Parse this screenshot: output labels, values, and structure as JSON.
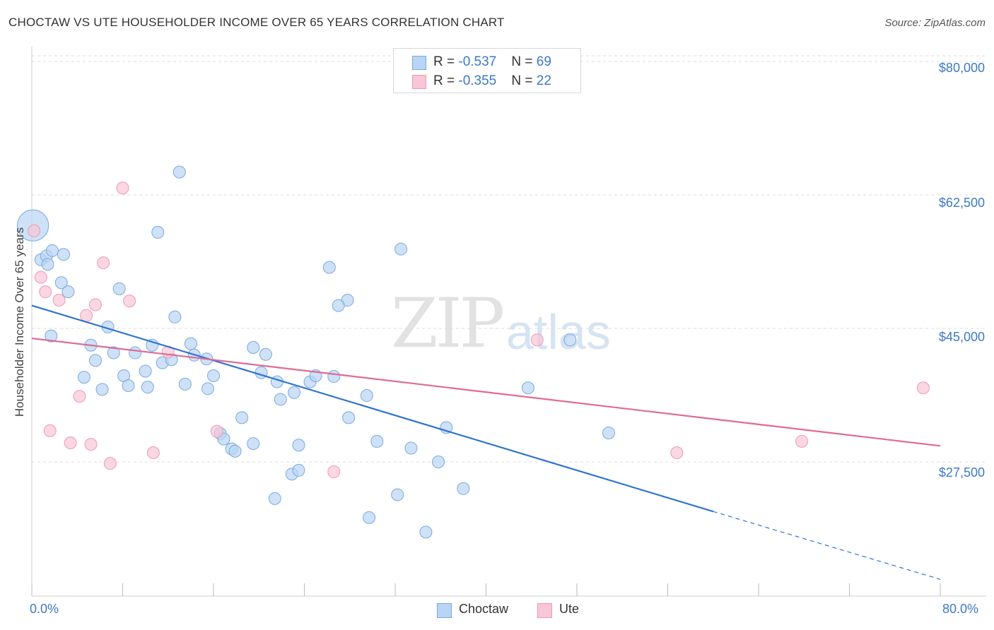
{
  "header": {
    "title": "CHOCTAW VS UTE HOUSEHOLDER INCOME OVER 65 YEARS CORRELATION CHART",
    "source": "Source: ZipAtlas.com"
  },
  "watermark": {
    "zip": "ZIP",
    "atlas": "atlas"
  },
  "legend": {
    "rows": [
      {
        "r_label": "R = ",
        "r_value": "-0.537",
        "n_label": "N = ",
        "n_value": "69"
      },
      {
        "r_label": "R = ",
        "r_value": "-0.355",
        "n_label": "N = ",
        "n_value": "22"
      }
    ]
  },
  "bottom_legend": {
    "series1": "Choctaw",
    "series2": "Ute"
  },
  "colors": {
    "choctaw_fill": "#b9d4f4",
    "choctaw_stroke": "#7aa9e0",
    "choctaw_line": "#2f74d0",
    "ute_fill": "#f8c6d6",
    "ute_stroke": "#ee9ab4",
    "ute_line": "#e06a94",
    "tick_text": "#3d78c8",
    "grid": "#dddddd"
  },
  "chart_data": {
    "type": "scatter",
    "title": "CHOCTAW VS UTE HOUSEHOLDER INCOME OVER 65 YEARS CORRELATION CHART",
    "xlabel": "",
    "ylabel": "Householder Income Over 65 years",
    "xlim": [
      0,
      80
    ],
    "ylim": [
      10000,
      82000
    ],
    "x_tick_labels": [
      "0.0%",
      "80.0%"
    ],
    "y_ticks": [
      27500,
      45000,
      62500,
      80000
    ],
    "y_tick_labels": [
      "$27,500",
      "$45,000",
      "$62,500",
      "$80,000"
    ],
    "grid": true,
    "series": [
      {
        "name": "Choctaw",
        "r": -0.537,
        "n": 69,
        "trend": {
          "x0": 0,
          "y0": 48000,
          "x1": 60,
          "y1": 21000,
          "dash_to_x": 80,
          "dash_to_y": 12100
        },
        "points": [
          [
            0.1,
            58500,
            2.6
          ],
          [
            0.8,
            54000,
            1
          ],
          [
            1.3,
            54500,
            1
          ],
          [
            1.8,
            55200,
            1
          ],
          [
            1.4,
            53400,
            1
          ],
          [
            2.8,
            54700,
            1
          ],
          [
            2.6,
            51000,
            1
          ],
          [
            3.2,
            49800,
            1
          ],
          [
            1.7,
            44000,
            1
          ],
          [
            13.0,
            65500,
            1
          ],
          [
            11.1,
            57600,
            1
          ],
          [
            26.2,
            53000,
            1
          ],
          [
            32.5,
            55400,
            1
          ],
          [
            27.8,
            48700,
            1
          ],
          [
            27.0,
            48000,
            1
          ],
          [
            7.7,
            50200,
            1
          ],
          [
            6.7,
            45200,
            1
          ],
          [
            12.6,
            46500,
            1
          ],
          [
            5.2,
            42800,
            1
          ],
          [
            7.2,
            41800,
            1
          ],
          [
            9.1,
            41800,
            1
          ],
          [
            10.6,
            42800,
            1
          ],
          [
            11.5,
            40500,
            1
          ],
          [
            12.3,
            40900,
            1
          ],
          [
            14.0,
            43000,
            1
          ],
          [
            14.3,
            41500,
            1
          ],
          [
            15.4,
            41000,
            1
          ],
          [
            19.5,
            42500,
            1
          ],
          [
            20.6,
            41600,
            1
          ],
          [
            5.6,
            40800,
            1
          ],
          [
            4.6,
            38600,
            1
          ],
          [
            8.1,
            38800,
            1
          ],
          [
            10.0,
            39400,
            1
          ],
          [
            8.5,
            37500,
            1
          ],
          [
            10.2,
            37300,
            1
          ],
          [
            6.2,
            37000,
            1
          ],
          [
            13.5,
            37700,
            1
          ],
          [
            15.5,
            37100,
            1
          ],
          [
            16.0,
            38800,
            1
          ],
          [
            20.2,
            39200,
            1
          ],
          [
            21.6,
            38000,
            1
          ],
          [
            23.1,
            36600,
            1
          ],
          [
            24.5,
            38000,
            1
          ],
          [
            25.0,
            38800,
            1
          ],
          [
            26.6,
            38700,
            1
          ],
          [
            29.5,
            36200,
            1
          ],
          [
            21.9,
            35700,
            1
          ],
          [
            18.5,
            33300,
            1
          ],
          [
            27.9,
            33300,
            1
          ],
          [
            16.6,
            31200,
            1
          ],
          [
            16.9,
            30500,
            1
          ],
          [
            19.5,
            29900,
            1
          ],
          [
            17.6,
            29200,
            1
          ],
          [
            17.9,
            28900,
            1
          ],
          [
            23.5,
            29700,
            1
          ],
          [
            30.4,
            30200,
            1
          ],
          [
            33.4,
            29300,
            1
          ],
          [
            36.5,
            32000,
            1
          ],
          [
            35.8,
            27500,
            1
          ],
          [
            22.9,
            25900,
            1
          ],
          [
            23.5,
            26400,
            1
          ],
          [
            38.0,
            24000,
            1
          ],
          [
            21.4,
            22700,
            1
          ],
          [
            32.2,
            23200,
            1
          ],
          [
            29.7,
            20200,
            1
          ],
          [
            34.7,
            18300,
            1
          ],
          [
            43.7,
            37200,
            1
          ],
          [
            47.4,
            43500,
            1
          ],
          [
            50.8,
            31300,
            1
          ]
        ]
      },
      {
        "name": "Ute",
        "r": -0.355,
        "n": 22,
        "trend": {
          "x0": 0,
          "y0": 43700,
          "x1": 80,
          "y1": 29600
        },
        "points": [
          [
            0.2,
            57800
          ],
          [
            0.8,
            51700
          ],
          [
            1.2,
            49800
          ],
          [
            2.4,
            48700
          ],
          [
            4.8,
            46700
          ],
          [
            5.6,
            48100
          ],
          [
            6.3,
            53600
          ],
          [
            8.6,
            48600
          ],
          [
            8.0,
            63400
          ],
          [
            12.0,
            41900
          ],
          [
            4.2,
            36100
          ],
          [
            1.6,
            31600
          ],
          [
            3.4,
            30000
          ],
          [
            5.2,
            29800
          ],
          [
            6.9,
            27300
          ],
          [
            10.7,
            28700
          ],
          [
            16.3,
            31500
          ],
          [
            26.6,
            26200
          ],
          [
            44.5,
            43500
          ],
          [
            56.8,
            28700
          ],
          [
            67.8,
            30200
          ],
          [
            78.5,
            37200
          ]
        ]
      }
    ]
  }
}
